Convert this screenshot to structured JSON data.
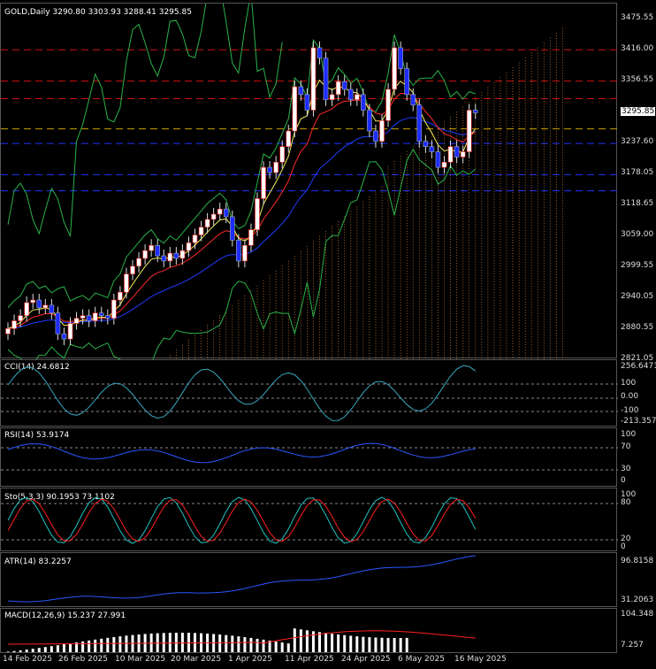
{
  "colors": {
    "bg": "#000000",
    "bull": "#ffffff",
    "bear": "#1f2cff",
    "up_candle_border": "#ff2020",
    "ma_fast": "#f3f05a",
    "ma_mid": "#ff2a2a",
    "ma_slow": "#1f3dff",
    "band": "#2bb34a",
    "resistance": "#d01010",
    "support": "#2233ff",
    "current": "#c8a000",
    "cloud": "#ff9a40",
    "cci": "#3aa6c0",
    "rsi": "#2a57ff",
    "stoch_k": "#22c3c3",
    "stoch_d": "#ff2020",
    "atr": "#2a57ff",
    "macd_hist": "#ffffff",
    "macd_signal": "#ff2020"
  },
  "main": {
    "title": "GOLD,Daily  3290.80 3303.93 3288.41 3295.85",
    "price_axis": [
      "3475.55",
      "3416.00",
      "3356.55",
      "3295.85",
      "3237.60",
      "3178.05",
      "3118.65",
      "3059.00",
      "2999.55",
      "2940.05",
      "2880.55",
      "2821.05"
    ],
    "current_price": "3295.85",
    "ylim": [
      2821.05,
      3505
    ]
  },
  "cci": {
    "label": "CCI(14) 24.6812",
    "axis": [
      "256.6471",
      "100",
      "0.00",
      "-100",
      "-213.3574"
    ]
  },
  "rsi": {
    "label": "RSI(14) 53.9174",
    "axis": [
      "100",
      "70",
      "30",
      "0"
    ]
  },
  "stoch": {
    "label": "Sto(5,3,3) 90.1953 73.1102",
    "axis": [
      "100",
      "80",
      "20",
      "0"
    ]
  },
  "atr": {
    "label": "ATR(14) 83.2257",
    "axis": [
      "96.8158",
      "31.2063"
    ]
  },
  "macd": {
    "label": "MACD(12,26,9) 15.237 27.991",
    "axis": [
      "104.348",
      "7.257"
    ]
  },
  "dates": [
    "14 Feb 2025",
    "26 Feb 2025",
    "10 Mar 2025",
    "20 Mar 2025",
    "1 Apr 2025",
    "11 Apr 2025",
    "24 Apr 2025",
    "6 May 2025",
    "16 May 2025"
  ],
  "chart_data": {
    "type": "candlestick",
    "series_close": [
      2880,
      2895,
      2905,
      2930,
      2935,
      2920,
      2925,
      2910,
      2870,
      2860,
      2890,
      2900,
      2905,
      2895,
      2910,
      2905,
      2900,
      2935,
      2950,
      2985,
      3000,
      3015,
      3030,
      3040,
      3020,
      3010,
      3025,
      3015,
      3030,
      3045,
      3060,
      3075,
      3090,
      3100,
      3110,
      3095,
      3050,
      3010,
      3040,
      3070,
      3130,
      3190,
      3180,
      3200,
      3230,
      3260,
      3345,
      3330,
      3300,
      3420,
      3400,
      3320,
      3330,
      3355,
      3340,
      3320,
      3330,
      3300,
      3260,
      3240,
      3280,
      3340,
      3420,
      3380,
      3330,
      3310,
      3240,
      3230,
      3220,
      3190,
      3200,
      3230,
      3210,
      3220,
      3300,
      3295
    ]
  }
}
